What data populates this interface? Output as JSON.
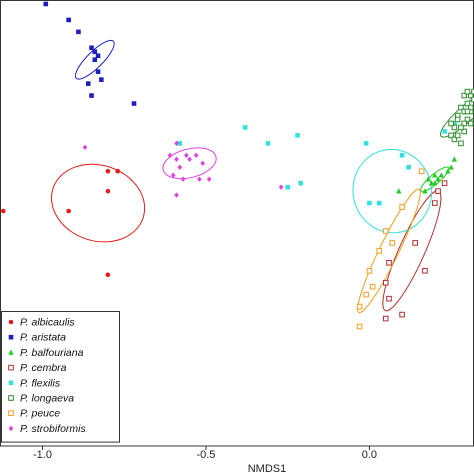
{
  "chart_data": {
    "type": "scatter",
    "title": "",
    "xlabel": "NMDS1",
    "ylabel": "",
    "xlim": [
      -1.13,
      0.32
    ],
    "ylim": [
      -0.56,
      0.56
    ],
    "x_ticks": [
      -1.0,
      -0.5,
      0.0
    ],
    "x_tick_labels": [
      "-1.0",
      "-0.5",
      "0.0"
    ],
    "legend_position": "bottom-left",
    "series": [
      {
        "name": "P. albicaulis",
        "color": "#e41a1c",
        "marker": "circle",
        "points": [
          [
            -1.12,
            0.03
          ],
          [
            -0.92,
            0.03
          ],
          [
            -0.8,
            0.08
          ],
          [
            -0.8,
            0.13
          ],
          [
            -0.77,
            0.13
          ],
          [
            -0.8,
            -0.13
          ]
        ],
        "ellipse": {
          "center": [
            -0.83,
            0.05
          ],
          "rx": 0.145,
          "ry": 0.095,
          "angle": 18
        }
      },
      {
        "name": "P. aristata",
        "color": "#1f1fbf",
        "marker": "square",
        "points": [
          [
            -0.99,
            0.55
          ],
          [
            -0.92,
            0.51
          ],
          [
            -0.89,
            0.48
          ],
          [
            -0.85,
            0.44
          ],
          [
            -0.84,
            0.43
          ],
          [
            -0.83,
            0.42
          ],
          [
            -0.84,
            0.41
          ],
          [
            -0.83,
            0.38
          ],
          [
            -0.82,
            0.36
          ],
          [
            -0.86,
            0.35
          ],
          [
            -0.85,
            0.32
          ],
          [
            -0.72,
            0.3
          ]
        ],
        "ellipse": {
          "center": [
            -0.84,
            0.41
          ],
          "rx": 0.08,
          "ry": 0.02,
          "angle": -45
        }
      },
      {
        "name": "P. balfouriana",
        "color": "#22cc22",
        "marker": "triangle",
        "points": [
          [
            0.09,
            0.08
          ],
          [
            0.17,
            0.08
          ],
          [
            0.19,
            0.1
          ],
          [
            0.2,
            0.1
          ],
          [
            0.21,
            0.11
          ],
          [
            0.2,
            0.12
          ],
          [
            0.22,
            0.12
          ],
          [
            0.24,
            0.13
          ],
          [
            0.25,
            0.14
          ],
          [
            0.26,
            0.16
          ],
          [
            0.18,
            0.11
          ]
        ],
        "ellipse": {
          "center": [
            0.2,
            0.11
          ],
          "rx": 0.055,
          "ry": 0.012,
          "angle": -40
        }
      },
      {
        "name": "P. cembra",
        "color": "#b03030",
        "marker": "square-open",
        "points": [
          [
            0.06,
            -0.1
          ],
          [
            0.05,
            -0.15
          ],
          [
            0.06,
            -0.19
          ],
          [
            0.05,
            -0.24
          ],
          [
            0.1,
            -0.23
          ],
          [
            0.17,
            -0.12
          ],
          [
            0.14,
            -0.05
          ],
          [
            0.2,
            0.05
          ],
          [
            0.21,
            0.08
          ],
          [
            0.23,
            0.1
          ]
        ],
        "ellipse": {
          "center": [
            0.13,
            -0.07
          ],
          "rx": 0.2,
          "ry": 0.032,
          "angle": -66
        }
      },
      {
        "name": "P. flexilis",
        "color": "#33e0e0",
        "marker": "square",
        "points": [
          [
            -0.38,
            0.24
          ],
          [
            -0.22,
            0.22
          ],
          [
            -0.31,
            0.2
          ],
          [
            -0.58,
            0.2
          ],
          [
            -0.21,
            0.1
          ],
          [
            -0.25,
            0.09
          ],
          [
            0.0,
            0.05
          ],
          [
            0.03,
            0.05
          ],
          [
            -0.01,
            0.2
          ],
          [
            0.23,
            0.23
          ],
          [
            0.26,
            0.25
          ],
          [
            0.12,
            0.14
          ],
          [
            0.1,
            0.17
          ]
        ],
        "ellipse": {
          "center": [
            0.07,
            0.08
          ],
          "rx": 0.12,
          "ry": 0.105,
          "angle": -12
        }
      },
      {
        "name": "P. longaeva",
        "color": "#2e8b2e",
        "marker": "square-open",
        "points": [
          [
            0.25,
            0.22
          ],
          [
            0.26,
            0.21
          ],
          [
            0.27,
            0.22
          ],
          [
            0.29,
            0.23
          ],
          [
            0.3,
            0.26
          ],
          [
            0.31,
            0.28
          ],
          [
            0.29,
            0.25
          ],
          [
            0.27,
            0.27
          ],
          [
            0.28,
            0.29
          ],
          [
            0.3,
            0.3
          ],
          [
            0.31,
            0.32
          ],
          [
            0.32,
            0.33
          ],
          [
            0.29,
            0.32
          ],
          [
            0.3,
            0.33
          ],
          [
            0.31,
            0.29
          ],
          [
            0.28,
            0.24
          ],
          [
            0.26,
            0.24
          ],
          [
            0.27,
            0.26
          ],
          [
            0.29,
            0.28
          ],
          [
            0.32,
            0.31
          ],
          [
            0.3,
            0.28
          ],
          [
            0.25,
            0.25
          ],
          [
            0.28,
            0.2
          ],
          [
            0.31,
            0.25
          ]
        ],
        "ellipse": {
          "center": [
            0.29,
            0.27
          ],
          "rx": 0.095,
          "ry": 0.02,
          "angle": -42
        }
      },
      {
        "name": "P. peuce",
        "color": "#f0a020",
        "marker": "square-open",
        "points": [
          [
            -0.03,
            -0.26
          ],
          [
            -0.01,
            -0.18
          ],
          [
            0.0,
            -0.12
          ],
          [
            0.03,
            -0.07
          ],
          [
            0.05,
            -0.02
          ],
          [
            0.1,
            0.04
          ],
          [
            0.16,
            0.13
          ],
          [
            -0.03,
            -0.21
          ],
          [
            0.01,
            -0.16
          ],
          [
            0.07,
            -0.05
          ]
        ],
        "ellipse": {
          "center": [
            0.06,
            -0.07
          ],
          "rx": 0.21,
          "ry": 0.024,
          "angle": -64
        }
      },
      {
        "name": "P. strobiformis",
        "color": "#dd44dd",
        "marker": "diamond",
        "points": [
          [
            -0.87,
            0.19
          ],
          [
            -0.59,
            0.2
          ],
          [
            -0.61,
            0.17
          ],
          [
            -0.59,
            0.16
          ],
          [
            -0.56,
            0.17
          ],
          [
            -0.55,
            0.16
          ],
          [
            -0.53,
            0.17
          ],
          [
            -0.51,
            0.15
          ],
          [
            -0.58,
            0.14
          ],
          [
            -0.6,
            0.12
          ],
          [
            -0.57,
            0.11
          ],
          [
            -0.52,
            0.11
          ],
          [
            -0.49,
            0.11
          ],
          [
            -0.59,
            0.07
          ],
          [
            -0.27,
            0.09
          ]
        ],
        "ellipse": {
          "center": [
            -0.55,
            0.15
          ],
          "rx": 0.083,
          "ry": 0.036,
          "angle": -14
        }
      }
    ]
  }
}
